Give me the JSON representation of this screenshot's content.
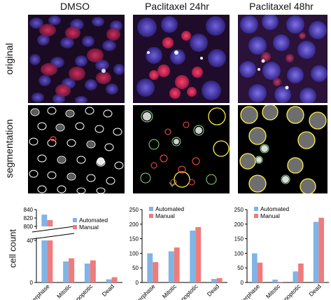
{
  "columns": [
    "DMSO",
    "Paclitaxel 24hr",
    "Paclitaxel 48hr"
  ],
  "rows": [
    "original",
    "segmentation"
  ],
  "legend": [
    "Automated",
    "Manual"
  ],
  "ylabel": "cell count",
  "colors": {
    "automated": "#7fb4e6",
    "manual": "#ef7b7b"
  },
  "chart_data": [
    {
      "type": "bar",
      "title": "DMSO",
      "categories": [
        "Interphase",
        "Mitotic",
        "Apoptotic",
        "Dead"
      ],
      "series": [
        {
          "name": "Automated",
          "values": [
            828,
            20,
            18,
            3
          ]
        },
        {
          "name": "Manual",
          "values": [
            815,
            23,
            21,
            5
          ]
        }
      ],
      "ylabel": "cell count",
      "broken_axis": {
        "lower_ylim": [
          0,
          40
        ],
        "upper_ylim": [
          800,
          840
        ]
      },
      "yticks": [
        0,
        40,
        800,
        820,
        840
      ]
    },
    {
      "type": "bar",
      "title": "Paclitaxel 24hr",
      "categories": [
        "Interphase",
        "Mitotic",
        "Apoptotic",
        "Dead"
      ],
      "series": [
        {
          "name": "Automated",
          "values": [
            100,
            107,
            178,
            12
          ]
        },
        {
          "name": "Manual",
          "values": [
            70,
            120,
            190,
            15
          ]
        }
      ],
      "ylim": [
        0,
        250
      ],
      "yticks": [
        0,
        50,
        100,
        150,
        200,
        250
      ]
    },
    {
      "type": "bar",
      "title": "Paclitaxel 48hr",
      "categories": [
        "Interphase",
        "Mitotic",
        "Apoptotic",
        "Dead"
      ],
      "series": [
        {
          "name": "Automated",
          "values": [
            100,
            10,
            38,
            208
          ]
        },
        {
          "name": "Manual",
          "values": [
            68,
            2,
            65,
            222
          ]
        }
      ],
      "ylim": [
        0,
        250
      ],
      "yticks": [
        0,
        50,
        100,
        150,
        200,
        250
      ]
    }
  ]
}
